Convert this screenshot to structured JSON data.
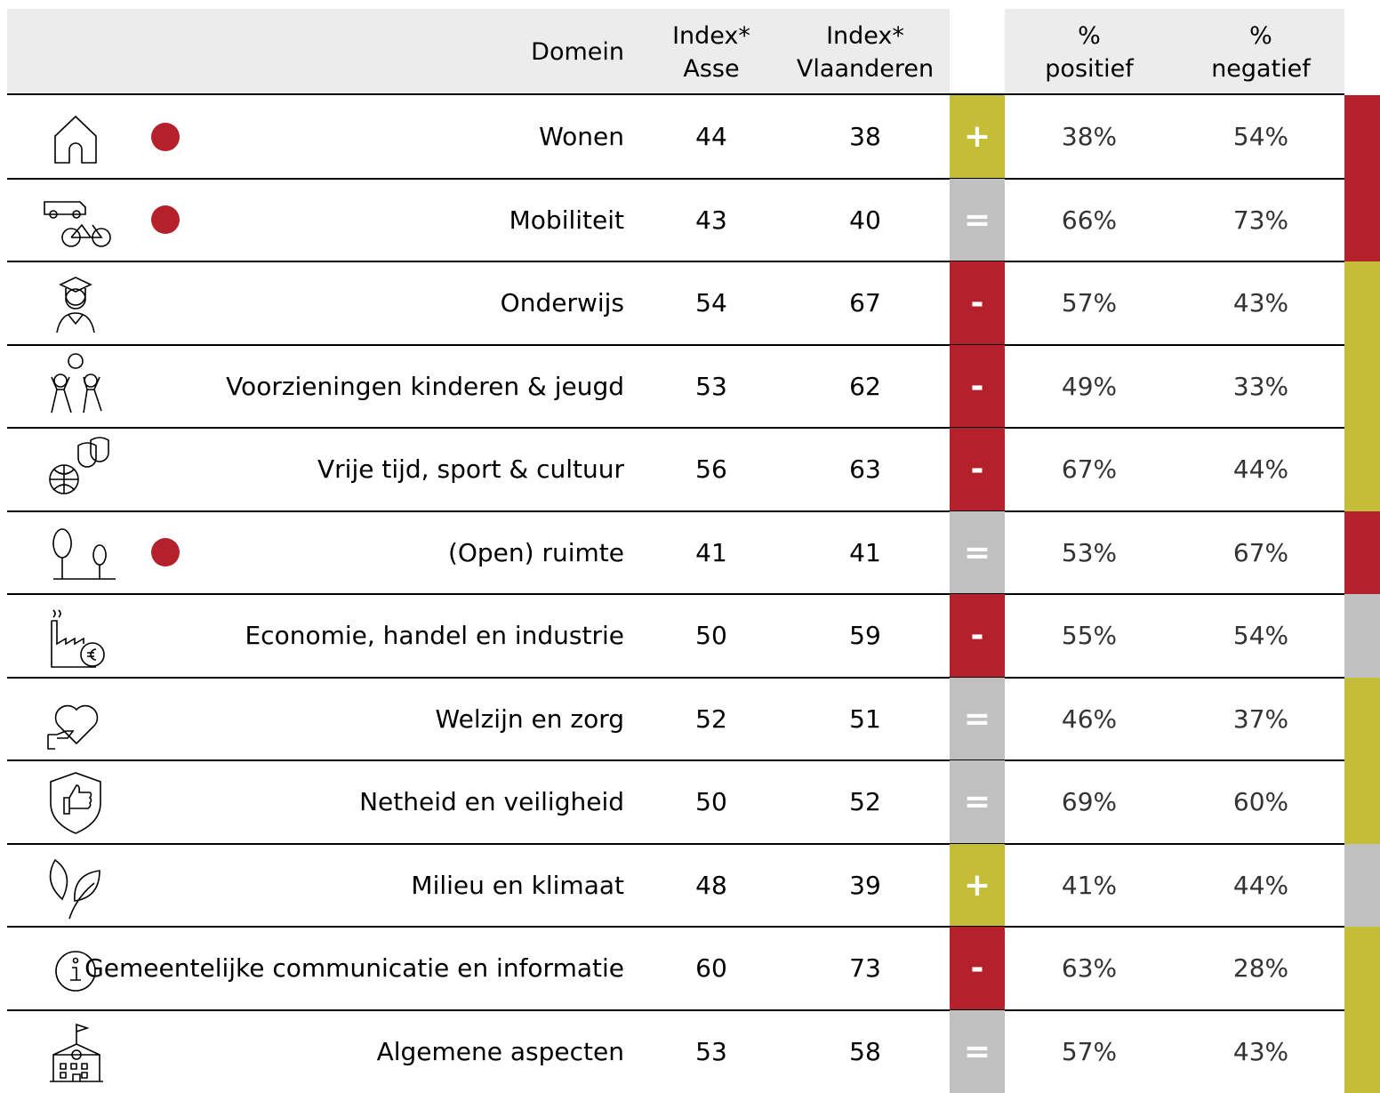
{
  "header": {
    "domain": "Domein",
    "index_asse": [
      "Index*",
      "Asse"
    ],
    "index_vlaanderen": [
      "Index*",
      "Vlaanderen"
    ],
    "positief": [
      "%",
      "positief"
    ],
    "negatief": [
      "%",
      "negatief"
    ]
  },
  "table": {
    "rows": [
      {
        "domain": "Wonen",
        "highlight": true,
        "asse": 44,
        "vlaanderen": 38,
        "sign": "+",
        "sign_color": "#c3bd38",
        "positief": "38%",
        "negatief": "54%",
        "bar_color": "#b5212a"
      },
      {
        "domain": "Mobiliteit",
        "highlight": true,
        "asse": 43,
        "vlaanderen": 40,
        "sign": "=",
        "sign_color": "#c0c0c0",
        "positief": "66%",
        "negatief": "73%",
        "bar_color": "#b5212a"
      },
      {
        "domain": "Onderwijs",
        "highlight": false,
        "asse": 54,
        "vlaanderen": 67,
        "sign": "-",
        "sign_color": "#b5212a",
        "positief": "57%",
        "negatief": "43%",
        "bar_color": "#c3bd38"
      },
      {
        "domain": "Voorzieningen kinderen & jeugd",
        "highlight": false,
        "asse": 53,
        "vlaanderen": 62,
        "sign": "-",
        "sign_color": "#b5212a",
        "positief": "49%",
        "negatief": "33%",
        "bar_color": "#c3bd38"
      },
      {
        "domain": "Vrije tijd, sport & cultuur",
        "highlight": false,
        "asse": 56,
        "vlaanderen": 63,
        "sign": "-",
        "sign_color": "#b5212a",
        "positief": "67%",
        "negatief": "44%",
        "bar_color": "#c3bd38"
      },
      {
        "domain": "(Open) ruimte",
        "highlight": true,
        "asse": 41,
        "vlaanderen": 41,
        "sign": "=",
        "sign_color": "#c0c0c0",
        "positief": "53%",
        "negatief": "67%",
        "bar_color": "#b5212a"
      },
      {
        "domain": "Economie, handel en industrie",
        "highlight": false,
        "asse": 50,
        "vlaanderen": 59,
        "sign": "-",
        "sign_color": "#b5212a",
        "positief": "55%",
        "negatief": "54%",
        "bar_color": "#c0c0c0"
      },
      {
        "domain": "Welzijn en zorg",
        "highlight": false,
        "asse": 52,
        "vlaanderen": 51,
        "sign": "=",
        "sign_color": "#c0c0c0",
        "positief": "46%",
        "negatief": "37%",
        "bar_color": "#c3bd38"
      },
      {
        "domain": "Netheid en veiligheid",
        "highlight": false,
        "asse": 50,
        "vlaanderen": 52,
        "sign": "=",
        "sign_color": "#c0c0c0",
        "positief": "69%",
        "negatief": "60%",
        "bar_color": "#c3bd38"
      },
      {
        "domain": "Milieu en klimaat",
        "highlight": false,
        "asse": 48,
        "vlaanderen": 39,
        "sign": "+",
        "sign_color": "#c3bd38",
        "positief": "41%",
        "negatief": "44%",
        "bar_color": "#c0c0c0"
      },
      {
        "domain": "Gemeentelijke communicatie en informatie",
        "highlight": false,
        "asse": 60,
        "vlaanderen": 73,
        "sign": "-",
        "sign_color": "#b5212a",
        "positief": "63%",
        "negatief": "28%",
        "bar_color": "#c3bd38"
      },
      {
        "domain": "Algemene aspecten",
        "highlight": false,
        "asse": 53,
        "vlaanderen": 58,
        "sign": "=",
        "sign_color": "#c0c0c0",
        "positief": "57%",
        "negatief": "43%",
        "bar_color": "#c3bd38"
      }
    ]
  }
}
